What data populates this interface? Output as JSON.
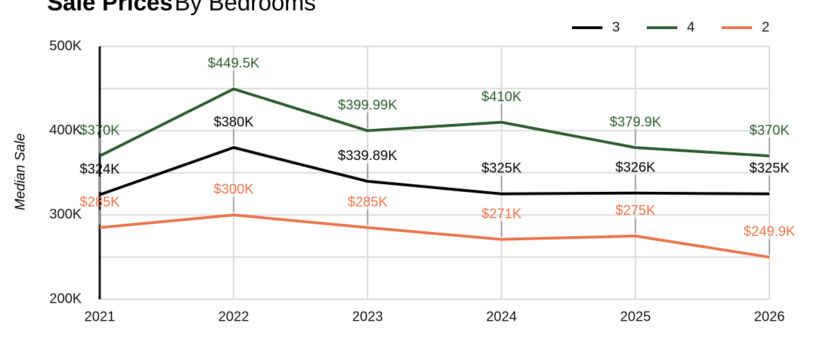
{
  "chart_data": {
    "type": "line",
    "title": "Sale Prices",
    "subtitle": "By Bedrooms",
    "y_label": "Median Sale",
    "categories": [
      "2021",
      "2022",
      "2023",
      "2024",
      "2025",
      "2026"
    ],
    "series": [
      {
        "name": "3",
        "color": "#000000",
        "values": [
          324000,
          380000,
          339890,
          325000,
          326000,
          325000
        ],
        "value_labels": [
          "$324K",
          "$380K",
          "$339.89K",
          "$325K",
          "$326K",
          "$325K"
        ]
      },
      {
        "name": "4",
        "color": "#2b5a2e",
        "values": [
          370000,
          449500,
          399990,
          410000,
          379900,
          370000
        ],
        "value_labels": [
          "$370K",
          "$449.5K",
          "$399.99K",
          "$410K",
          "$379.9K",
          "$370K"
        ]
      },
      {
        "name": "2",
        "color": "#e8734a",
        "values": [
          285000,
          300000,
          285000,
          271000,
          275000,
          249900
        ],
        "value_labels": [
          "$285K",
          "$300K",
          "$285K",
          "$271K",
          "$275K",
          "$249.9K"
        ]
      }
    ],
    "ylim": [
      200000,
      500000
    ],
    "yticks": [
      {
        "value": 200000,
        "label": "200K"
      },
      {
        "value": 300000,
        "label": "300K"
      },
      {
        "value": 400000,
        "label": "400K"
      },
      {
        "value": 500000,
        "label": "500K"
      }
    ],
    "minor_yticks": [
      250000,
      350000,
      450000
    ],
    "grid": true,
    "legend": "top-right"
  }
}
